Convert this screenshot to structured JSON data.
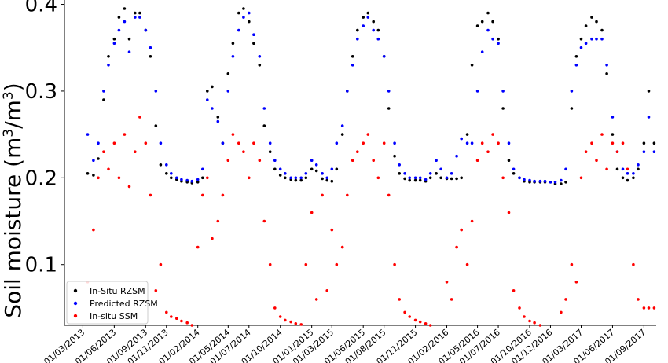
{
  "chart_data": {
    "type": "scatter",
    "ylabel": "Soil moisture (m³/m³)",
    "ylabel_parts": {
      "main": "Soil moisture (m",
      "sup1": "3",
      "mid": "/m",
      "sup2": "3",
      "end": ")"
    },
    "ylim": [
      0.03,
      0.405
    ],
    "y_ticks": [
      0.1,
      0.2,
      0.3,
      0.4
    ],
    "y_tick_labels": [
      "0.1",
      "0.2",
      "0.3",
      "0.4"
    ],
    "x_tick_labels": [
      "01/03/2013",
      "01/06/2013",
      "01/09/2013",
      "01/11/2013",
      "01/02/2014",
      "01/05/2014",
      "01/07/2014",
      "01/10/2014",
      "01/01/2015",
      "01/03/2015",
      "01/06/2015",
      "01/08/2015",
      "01/11/2015",
      "01/02/2016",
      "01/05/2016",
      "01/07/2016",
      "01/10/2016",
      "01/12/2016",
      "01/03/2017",
      "01/06/2017",
      "01/09/2017"
    ],
    "x_tick_dates": [
      "2013-03-01",
      "2013-06-01",
      "2013-09-01",
      "2013-11-01",
      "2014-02-01",
      "2014-05-01",
      "2014-07-01",
      "2014-10-01",
      "2015-01-01",
      "2015-03-01",
      "2015-06-01",
      "2015-08-01",
      "2015-11-01",
      "2016-02-01",
      "2016-05-01",
      "2016-07-01",
      "2016-10-01",
      "2016-12-01",
      "2017-03-01",
      "2017-06-01",
      "2017-09-01"
    ],
    "x_range": [
      "2013-01-06",
      "2017-10-07"
    ],
    "legend_placement": "bottom-left",
    "grid": false,
    "series": [
      {
        "name": "In-Situ RZSM",
        "color": "#000000",
        "x": [
          "2013-03-15",
          "2013-04-01",
          "2013-04-15",
          "2013-05-01",
          "2013-05-15",
          "2013-06-01",
          "2013-06-15",
          "2013-07-01",
          "2013-07-15",
          "2013-08-01",
          "2013-08-15",
          "2013-09-01",
          "2013-09-15",
          "2013-10-01",
          "2013-10-15",
          "2013-11-01",
          "2013-11-15",
          "2013-12-01",
          "2013-12-15",
          "2014-01-01",
          "2014-01-15",
          "2014-02-01",
          "2014-02-15",
          "2014-03-01",
          "2014-03-15",
          "2014-04-01",
          "2014-04-15",
          "2014-05-01",
          "2014-05-15",
          "2014-06-01",
          "2014-06-15",
          "2014-07-01",
          "2014-07-15",
          "2014-08-01",
          "2014-08-15",
          "2014-09-01",
          "2014-09-15",
          "2014-10-01",
          "2014-10-15",
          "2014-11-01",
          "2014-11-15",
          "2014-12-01",
          "2014-12-15",
          "2015-01-01",
          "2015-01-15",
          "2015-02-01",
          "2015-02-15",
          "2015-03-01",
          "2015-03-15",
          "2015-04-01",
          "2015-04-15",
          "2015-05-01",
          "2015-05-15",
          "2015-06-01",
          "2015-06-15",
          "2015-07-01",
          "2015-07-15",
          "2015-08-01",
          "2015-08-15",
          "2015-09-01",
          "2015-09-15",
          "2015-10-01",
          "2015-10-15",
          "2015-11-01",
          "2015-11-15",
          "2015-12-01",
          "2015-12-15",
          "2016-01-01",
          "2016-01-15",
          "2016-02-01",
          "2016-02-15",
          "2016-03-01",
          "2016-03-15",
          "2016-04-01",
          "2016-04-15",
          "2016-05-01",
          "2016-05-15",
          "2016-06-01",
          "2016-06-15",
          "2016-07-01",
          "2016-07-15",
          "2016-08-01",
          "2016-08-15",
          "2016-09-01",
          "2016-09-15",
          "2016-10-01",
          "2016-10-15",
          "2016-11-01",
          "2016-11-15",
          "2016-12-01",
          "2016-12-15",
          "2017-01-01",
          "2017-01-15",
          "2017-02-01",
          "2017-02-15",
          "2017-03-01",
          "2017-03-15",
          "2017-04-01",
          "2017-04-15",
          "2017-05-01",
          "2017-05-15",
          "2017-06-01",
          "2017-06-15",
          "2017-07-01",
          "2017-07-15",
          "2017-08-01",
          "2017-08-15",
          "2017-09-01",
          "2017-09-15",
          "2017-10-01"
        ],
        "y": [
          0.205,
          0.203,
          0.222,
          0.29,
          0.34,
          0.36,
          0.385,
          0.395,
          0.36,
          0.39,
          0.39,
          0.37,
          0.34,
          0.26,
          0.215,
          0.205,
          0.2,
          0.198,
          0.196,
          0.195,
          0.194,
          0.195,
          0.2,
          0.3,
          0.305,
          0.27,
          0.24,
          0.32,
          0.355,
          0.39,
          0.395,
          0.38,
          0.355,
          0.33,
          0.26,
          0.23,
          0.21,
          0.203,
          0.2,
          0.198,
          0.197,
          0.197,
          0.2,
          0.21,
          0.208,
          0.199,
          0.197,
          0.196,
          0.21,
          0.25,
          0.3,
          0.34,
          0.37,
          0.385,
          0.39,
          0.38,
          0.37,
          0.34,
          0.28,
          0.225,
          0.205,
          0.199,
          0.197,
          0.197,
          0.197,
          0.196,
          0.2,
          0.205,
          0.2,
          0.199,
          0.199,
          0.199,
          0.2,
          0.25,
          0.33,
          0.375,
          0.38,
          0.39,
          0.38,
          0.36,
          0.28,
          0.22,
          0.205,
          0.2,
          0.196,
          0.195,
          0.195,
          0.195,
          0.195,
          0.195,
          0.193,
          0.193,
          0.195,
          0.28,
          0.34,
          0.36,
          0.375,
          0.385,
          0.38,
          0.37,
          0.32,
          0.25,
          0.21,
          0.2,
          0.197,
          0.2,
          0.21,
          0.24,
          0.3,
          0.24
        ]
      },
      {
        "name": "Predicted RZSM",
        "color": "#0000ff",
        "x": [
          "2013-03-15",
          "2013-04-01",
          "2013-04-15",
          "2013-05-01",
          "2013-05-15",
          "2013-06-01",
          "2013-06-15",
          "2013-07-01",
          "2013-07-15",
          "2013-08-01",
          "2013-08-15",
          "2013-09-01",
          "2013-09-15",
          "2013-10-01",
          "2013-10-15",
          "2013-11-01",
          "2013-11-15",
          "2013-12-01",
          "2013-12-15",
          "2014-01-01",
          "2014-01-15",
          "2014-02-01",
          "2014-02-15",
          "2014-03-01",
          "2014-03-15",
          "2014-04-01",
          "2014-04-15",
          "2014-05-01",
          "2014-05-15",
          "2014-06-01",
          "2014-06-15",
          "2014-07-01",
          "2014-07-15",
          "2014-08-01",
          "2014-08-15",
          "2014-09-01",
          "2014-09-15",
          "2014-10-01",
          "2014-10-15",
          "2014-11-01",
          "2014-11-15",
          "2014-12-01",
          "2014-12-15",
          "2015-01-01",
          "2015-01-15",
          "2015-02-01",
          "2015-02-15",
          "2015-03-01",
          "2015-03-15",
          "2015-04-01",
          "2015-04-15",
          "2015-05-01",
          "2015-05-15",
          "2015-06-01",
          "2015-06-15",
          "2015-07-01",
          "2015-07-15",
          "2015-08-01",
          "2015-08-15",
          "2015-09-01",
          "2015-09-15",
          "2015-10-01",
          "2015-10-15",
          "2015-11-01",
          "2015-11-15",
          "2015-12-01",
          "2015-12-15",
          "2016-01-01",
          "2016-01-15",
          "2016-02-01",
          "2016-02-15",
          "2016-03-01",
          "2016-03-15",
          "2016-04-01",
          "2016-04-15",
          "2016-05-01",
          "2016-05-15",
          "2016-06-01",
          "2016-06-15",
          "2016-07-01",
          "2016-07-15",
          "2016-08-01",
          "2016-08-15",
          "2016-09-01",
          "2016-09-15",
          "2016-10-01",
          "2016-10-15",
          "2016-11-01",
          "2016-11-15",
          "2016-12-01",
          "2016-12-15",
          "2017-01-01",
          "2017-01-15",
          "2017-02-01",
          "2017-02-15",
          "2017-03-01",
          "2017-03-15",
          "2017-04-01",
          "2017-04-15",
          "2017-05-01",
          "2017-05-15",
          "2017-06-01",
          "2017-06-15",
          "2017-07-01",
          "2017-07-15",
          "2017-08-01",
          "2017-08-15",
          "2017-09-01",
          "2017-09-15",
          "2017-10-01"
        ],
        "y": [
          0.25,
          0.22,
          0.24,
          0.3,
          0.33,
          0.355,
          0.37,
          0.38,
          0.345,
          0.385,
          0.385,
          0.37,
          0.35,
          0.3,
          0.24,
          0.215,
          0.205,
          0.2,
          0.198,
          0.197,
          0.196,
          0.198,
          0.21,
          0.29,
          0.28,
          0.265,
          0.24,
          0.3,
          0.34,
          0.37,
          0.385,
          0.39,
          0.365,
          0.34,
          0.28,
          0.24,
          0.22,
          0.21,
          0.205,
          0.2,
          0.2,
          0.2,
          0.205,
          0.22,
          0.215,
          0.205,
          0.2,
          0.21,
          0.24,
          0.26,
          0.3,
          0.33,
          0.36,
          0.375,
          0.385,
          0.37,
          0.36,
          0.34,
          0.3,
          0.24,
          0.215,
          0.205,
          0.2,
          0.2,
          0.2,
          0.198,
          0.205,
          0.22,
          0.21,
          0.2,
          0.205,
          0.225,
          0.245,
          0.24,
          0.24,
          0.3,
          0.345,
          0.37,
          0.36,
          0.355,
          0.3,
          0.24,
          0.21,
          0.2,
          0.198,
          0.197,
          0.196,
          0.196,
          0.196,
          0.195,
          0.195,
          0.197,
          0.21,
          0.3,
          0.33,
          0.35,
          0.355,
          0.36,
          0.36,
          0.36,
          0.33,
          0.27,
          0.23,
          0.21,
          0.205,
          0.205,
          0.215,
          0.23,
          0.27,
          0.23
        ]
      },
      {
        "name": "In-situ SSM",
        "color": "#ff0000",
        "x": [
          "2013-03-15",
          "2013-04-01",
          "2013-04-15",
          "2013-05-01",
          "2013-05-15",
          "2013-06-01",
          "2013-06-15",
          "2013-07-01",
          "2013-07-15",
          "2013-08-01",
          "2013-08-15",
          "2013-09-01",
          "2013-09-15",
          "2013-10-01",
          "2013-10-15",
          "2013-11-01",
          "2013-11-15",
          "2013-12-01",
          "2013-12-15",
          "2014-01-01",
          "2014-01-15",
          "2014-02-01",
          "2014-02-15",
          "2014-03-01",
          "2014-03-15",
          "2014-04-01",
          "2014-04-15",
          "2014-05-01",
          "2014-05-15",
          "2014-06-01",
          "2014-06-15",
          "2014-07-01",
          "2014-07-15",
          "2014-08-01",
          "2014-08-15",
          "2014-09-01",
          "2014-09-15",
          "2014-10-01",
          "2014-10-15",
          "2014-11-01",
          "2014-11-15",
          "2014-12-01",
          "2014-12-15",
          "2015-01-01",
          "2015-01-15",
          "2015-02-01",
          "2015-02-15",
          "2015-03-01",
          "2015-03-15",
          "2015-04-01",
          "2015-04-15",
          "2015-05-01",
          "2015-05-15",
          "2015-06-01",
          "2015-06-15",
          "2015-07-01",
          "2015-07-15",
          "2015-08-01",
          "2015-08-15",
          "2015-09-01",
          "2015-09-15",
          "2015-10-01",
          "2015-10-15",
          "2015-11-01",
          "2015-11-15",
          "2015-12-01",
          "2015-12-15",
          "2016-01-01",
          "2016-01-15",
          "2016-02-01",
          "2016-02-15",
          "2016-03-01",
          "2016-03-15",
          "2016-04-01",
          "2016-04-15",
          "2016-05-01",
          "2016-05-15",
          "2016-06-01",
          "2016-06-15",
          "2016-07-01",
          "2016-07-15",
          "2016-08-01",
          "2016-08-15",
          "2016-09-01",
          "2016-09-15",
          "2016-10-01",
          "2016-10-15",
          "2016-11-01",
          "2016-11-15",
          "2016-12-01",
          "2016-12-15",
          "2017-01-01",
          "2017-01-15",
          "2017-02-01",
          "2017-02-15",
          "2017-03-01",
          "2017-03-15",
          "2017-04-01",
          "2017-04-15",
          "2017-05-01",
          "2017-05-15",
          "2017-06-01",
          "2017-06-15",
          "2017-07-01",
          "2017-07-15",
          "2017-08-01",
          "2017-08-15",
          "2017-09-01",
          "2017-09-15",
          "2017-10-01"
        ],
        "y": [
          0.08,
          0.14,
          0.2,
          0.23,
          0.21,
          0.24,
          0.2,
          0.25,
          0.19,
          0.23,
          0.27,
          0.24,
          0.18,
          0.07,
          0.1,
          0.045,
          0.04,
          0.038,
          0.035,
          0.033,
          0.03,
          0.12,
          0.18,
          0.2,
          0.13,
          0.15,
          0.18,
          0.22,
          0.25,
          0.24,
          0.23,
          0.2,
          0.24,
          0.22,
          0.15,
          0.1,
          0.05,
          0.04,
          0.036,
          0.034,
          0.032,
          0.031,
          0.1,
          0.16,
          0.06,
          0.18,
          0.07,
          0.14,
          0.1,
          0.12,
          0.18,
          0.22,
          0.23,
          0.24,
          0.25,
          0.22,
          0.2,
          0.24,
          0.18,
          0.1,
          0.06,
          0.045,
          0.04,
          0.036,
          0.034,
          0.032,
          0.03,
          0.028,
          0.026,
          0.08,
          0.06,
          0.12,
          0.14,
          0.1,
          0.15,
          0.22,
          0.24,
          0.23,
          0.25,
          0.24,
          0.2,
          0.16,
          0.07,
          0.05,
          0.04,
          0.035,
          0.033,
          0.03,
          0.028,
          0.026,
          0.025,
          0.045,
          0.06,
          0.1,
          0.08,
          0.2,
          0.23,
          0.24,
          0.22,
          0.25,
          0.21,
          0.24,
          0.23,
          0.24,
          0.21,
          0.1,
          0.06,
          0.05,
          0.05,
          0.05
        ]
      }
    ]
  }
}
